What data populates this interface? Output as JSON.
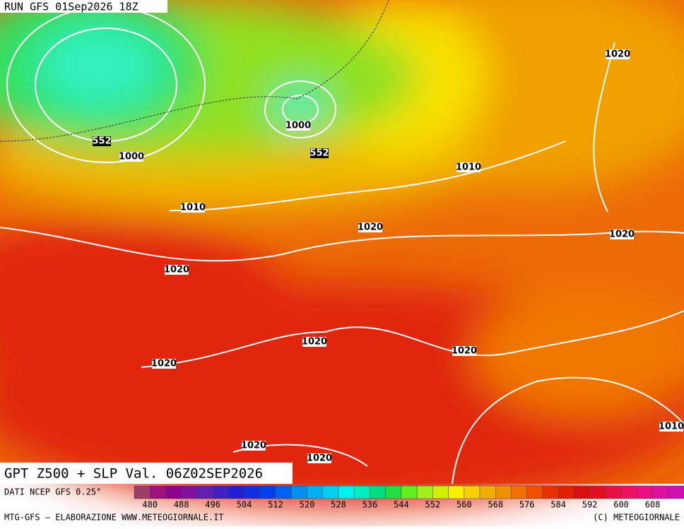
{
  "header": {
    "run": "RUN GFS 01Sep2026 18Z"
  },
  "map": {
    "title": "GPT Z500 + SLP Val. 06Z02SEP2026",
    "pressure_labels": [
      1020,
      1000,
      1000,
      1010,
      1010,
      1020,
      1020,
      1020,
      1020,
      1020,
      1020,
      1010,
      1020,
      1020
    ],
    "height_labels": [
      552,
      552
    ]
  },
  "legend": {
    "source": "DATI NCEP GFS 0.25°",
    "colors": [
      "#a03c6a",
      "#a0107a",
      "#900090",
      "#8010a0",
      "#6020b0",
      "#4020c0",
      "#2020d0",
      "#1030e0",
      "#0040f0",
      "#0060f0",
      "#0090f0",
      "#00b0f0",
      "#00d0f0",
      "#00f0f0",
      "#00f0c0",
      "#00e080",
      "#20e040",
      "#60f020",
      "#a0f020",
      "#d0f000",
      "#f8f000",
      "#f8d000",
      "#f0b000",
      "#f09000",
      "#f07000",
      "#f05000",
      "#e83000",
      "#e02000",
      "#d81010",
      "#e01020",
      "#e81040",
      "#f01060",
      "#e81080",
      "#e010a0",
      "#d010b0"
    ],
    "ticks": [
      480,
      488,
      496,
      504,
      512,
      520,
      528,
      536,
      544,
      552,
      560,
      568,
      576,
      584,
      592,
      600,
      608
    ]
  },
  "footer": {
    "credit": "MTG-GFS – ELABORAZIONE WWW.METEOGIORNALE.IT",
    "copyright": "(C) METEOGIORNALE"
  }
}
